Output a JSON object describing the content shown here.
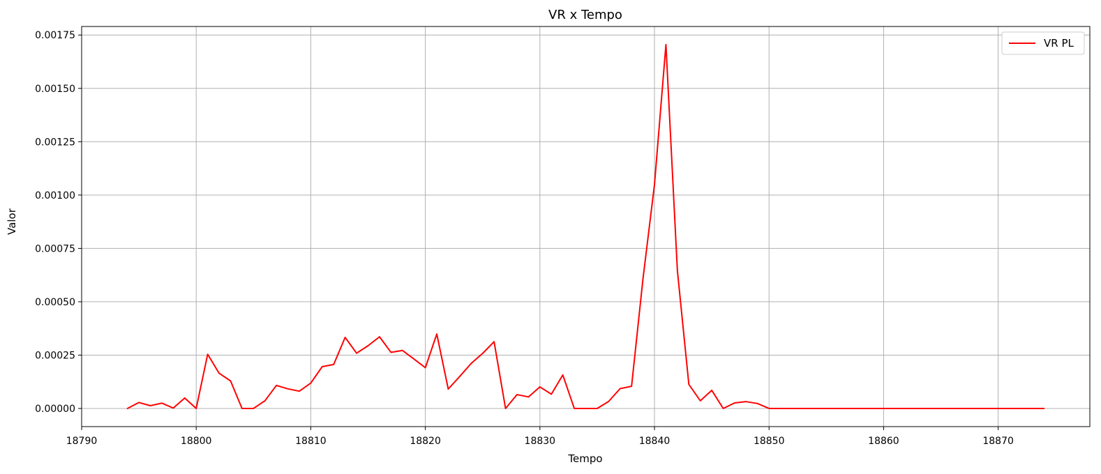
{
  "chart_data": {
    "type": "line",
    "title": "VR x Tempo",
    "xlabel": "Tempo",
    "ylabel": "Valor",
    "xlim": [
      18790,
      18878
    ],
    "ylim": [
      -8.5e-05,
      0.00179
    ],
    "xticks": [
      18790,
      18800,
      18810,
      18820,
      18830,
      18840,
      18850,
      18860,
      18870
    ],
    "yticks": [
      0,
      0.00025,
      0.0005,
      0.00075,
      0.001,
      0.00125,
      0.0015,
      0.00175
    ],
    "ytick_labels": [
      "0.00000",
      "0.00025",
      "0.00050",
      "0.00075",
      "0.00100",
      "0.00125",
      "0.00150",
      "0.00175"
    ],
    "grid": true,
    "legend_position": "top-right",
    "series": [
      {
        "name": "VR PL",
        "color": "#ff0000",
        "x": [
          18794,
          18795,
          18796,
          18797,
          18798,
          18799,
          18800,
          18801,
          18802,
          18803,
          18804,
          18805,
          18806,
          18807,
          18808,
          18809,
          18810,
          18811,
          18812,
          18813,
          18814,
          18815,
          18816,
          18817,
          18818,
          18819,
          18820,
          18821,
          18822,
          18823,
          18824,
          18825,
          18826,
          18827,
          18828,
          18829,
          18830,
          18831,
          18832,
          18833,
          18834,
          18835,
          18836,
          18837,
          18838,
          18839,
          18840,
          18841,
          18842,
          18843,
          18844,
          18845,
          18846,
          18847,
          18848,
          18849,
          18850,
          18851,
          18852,
          18853,
          18854,
          18855,
          18856,
          18857,
          18858,
          18859,
          18860,
          18861,
          18862,
          18863,
          18864,
          18865,
          18866,
          18867,
          18868,
          18869,
          18870,
          18871,
          18872,
          18873,
          18874
        ],
        "y": [
          0.0,
          2.8e-05,
          1.3e-05,
          2.5e-05,
          2e-06,
          4.9e-05,
          0.0,
          0.000254,
          0.000165,
          0.000129,
          0.0,
          0.0,
          3.6e-05,
          0.000108,
          9.2e-05,
          8.1e-05,
          0.000119,
          0.000196,
          0.000206,
          0.000333,
          0.000259,
          0.000294,
          0.000336,
          0.000263,
          0.000272,
          0.000232,
          0.000191,
          0.000349,
          9.1e-05,
          0.00015,
          0.000211,
          0.000258,
          0.000313,
          0.0,
          6.5e-05,
          5.4e-05,
          0.000101,
          6.7e-05,
          0.000157,
          0.0,
          0.0,
          0.0,
          3.3e-05,
          9.3e-05,
          0.000104,
          0.000609,
          0.001049,
          0.001705,
          0.000646,
          0.000113,
          3.6e-05,
          8.5e-05,
          0.0,
          2.6e-05,
          3.2e-05,
          2.3e-05,
          0.0,
          0.0,
          0.0,
          0.0,
          0.0,
          0.0,
          0.0,
          0.0,
          0.0,
          0.0,
          0.0,
          0.0,
          0.0,
          0.0,
          0.0,
          0.0,
          0.0,
          0.0,
          0.0,
          0.0,
          0.0,
          0.0,
          0.0,
          0.0,
          0.0
        ]
      }
    ]
  }
}
